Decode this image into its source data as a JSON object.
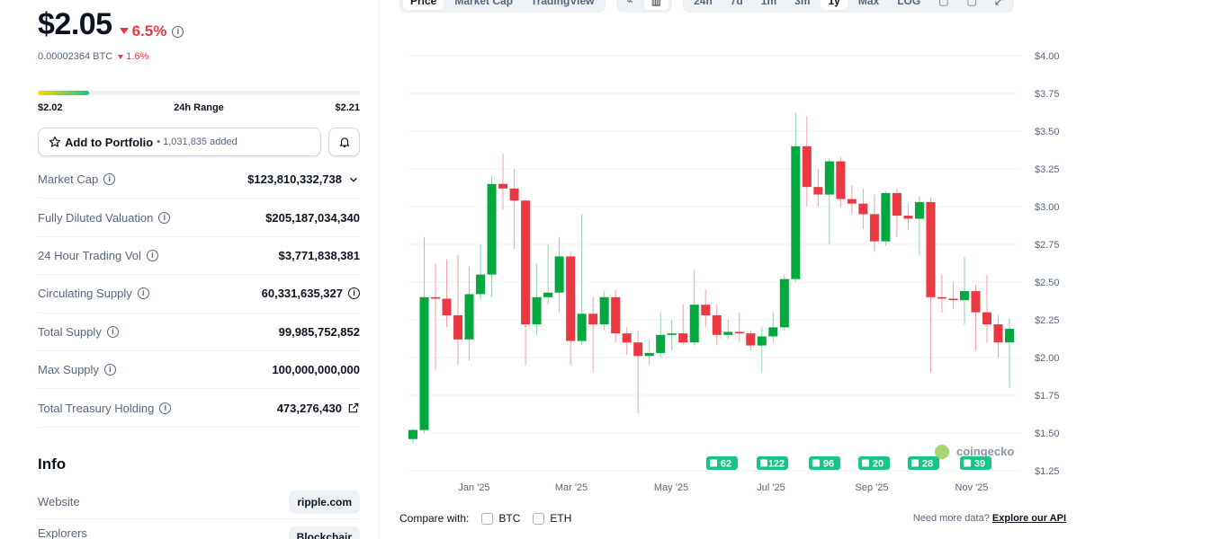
{
  "coin": {
    "price": "$2.05",
    "change_pct": "6.5%",
    "btc_price": "0.00002364 BTC",
    "btc_change": "1.6%",
    "range_low": "$2.02",
    "range_label": "24h Range",
    "range_high": "$2.21",
    "range_progress": 0.16
  },
  "portfolio": {
    "label": "Add to Portfolio",
    "added": "• 1,031,835 added"
  },
  "stats": [
    {
      "name": "Market Cap",
      "value": "$123,810,332,738"
    },
    {
      "name": "Fully Diluted Valuation",
      "value": "$205,187,034,340"
    },
    {
      "name": "24 Hour Trading Vol",
      "value": "$3,771,838,381"
    },
    {
      "name": "Circulating Supply",
      "value": "60,331,635,327"
    },
    {
      "name": "Total Supply",
      "value": "99,985,752,852"
    },
    {
      "name": "Max Supply",
      "value": "100,000,000,000"
    },
    {
      "name": "Total Treasury Holding",
      "value": "473,276,430"
    }
  ],
  "info": {
    "heading": "Info",
    "website_label": "Website",
    "website_value": "ripple.com",
    "explorers_label": "Explorers",
    "explorers_value": "Blockchair"
  },
  "toolbar": {
    "tabs": [
      "Price",
      "Market Cap",
      "TradingView"
    ],
    "ranges": [
      "24h",
      "7d",
      "1m",
      "3m",
      "1y",
      "Max",
      "LOG"
    ]
  },
  "compare": {
    "label": "Compare with:",
    "options": [
      "BTC",
      "ETH"
    ],
    "api_text": "Need more data?",
    "api_link": "Explore our API"
  },
  "chart_data": {
    "type": "candlestick",
    "y_ticks": [
      "$4.00",
      "$3.75",
      "$3.50",
      "$3.25",
      "$3.00",
      "$2.75",
      "$2.50",
      "$2.25",
      "$2.00",
      "$1.75",
      "$1.50",
      "$1.25"
    ],
    "ylim": [
      1.25,
      4.0
    ],
    "x_ticks": [
      "Jan '25",
      "Mar '25",
      "May '25",
      "Jul '25",
      "Sep '25",
      "Nov '25"
    ],
    "grid": true,
    "watermark": "coingecko",
    "news_badges": [
      "62",
      "122",
      "96",
      "20",
      "28",
      "39"
    ],
    "candles": [
      {
        "o": 1.46,
        "c": 1.52,
        "h": 1.53,
        "l": 1.43
      },
      {
        "o": 1.52,
        "c": 2.4,
        "h": 2.8,
        "l": 1.5
      },
      {
        "o": 2.4,
        "c": 2.39,
        "h": 2.62,
        "l": 1.92
      },
      {
        "o": 2.39,
        "c": 2.28,
        "h": 2.65,
        "l": 2.2
      },
      {
        "o": 2.28,
        "c": 2.12,
        "h": 2.68,
        "l": 1.95
      },
      {
        "o": 2.12,
        "c": 2.42,
        "h": 2.6,
        "l": 1.98
      },
      {
        "o": 2.42,
        "c": 2.55,
        "h": 2.75,
        "l": 2.38
      },
      {
        "o": 2.55,
        "c": 3.15,
        "h": 3.2,
        "l": 2.4
      },
      {
        "o": 3.15,
        "c": 3.12,
        "h": 3.35,
        "l": 2.98
      },
      {
        "o": 3.12,
        "c": 3.04,
        "h": 3.25,
        "l": 2.72
      },
      {
        "o": 3.04,
        "c": 2.22,
        "h": 3.05,
        "l": 1.95
      },
      {
        "o": 2.22,
        "c": 2.4,
        "h": 2.62,
        "l": 2.15
      },
      {
        "o": 2.4,
        "c": 2.43,
        "h": 2.75,
        "l": 2.35
      },
      {
        "o": 2.43,
        "c": 2.67,
        "h": 2.8,
        "l": 2.3
      },
      {
        "o": 2.67,
        "c": 2.11,
        "h": 2.7,
        "l": 1.95
      },
      {
        "o": 2.11,
        "c": 2.29,
        "h": 2.95,
        "l": 2.08
      },
      {
        "o": 2.29,
        "c": 2.22,
        "h": 2.4,
        "l": 1.9
      },
      {
        "o": 2.22,
        "c": 2.4,
        "h": 2.44,
        "l": 2.18
      },
      {
        "o": 2.4,
        "c": 2.16,
        "h": 2.45,
        "l": 2.1
      },
      {
        "o": 2.16,
        "c": 2.1,
        "h": 2.2,
        "l": 2.02
      },
      {
        "o": 2.1,
        "c": 2.01,
        "h": 2.18,
        "l": 1.63
      },
      {
        "o": 2.01,
        "c": 2.03,
        "h": 2.12,
        "l": 1.95
      },
      {
        "o": 2.03,
        "c": 2.15,
        "h": 2.3,
        "l": 2.0
      },
      {
        "o": 2.15,
        "c": 2.16,
        "h": 2.25,
        "l": 2.05
      },
      {
        "o": 2.16,
        "c": 2.1,
        "h": 2.35,
        "l": 2.08
      },
      {
        "o": 2.1,
        "c": 2.35,
        "h": 2.58,
        "l": 2.08
      },
      {
        "o": 2.35,
        "c": 2.28,
        "h": 2.45,
        "l": 2.2
      },
      {
        "o": 2.28,
        "c": 2.15,
        "h": 2.35,
        "l": 2.08
      },
      {
        "o": 2.15,
        "c": 2.17,
        "h": 2.25,
        "l": 2.12
      },
      {
        "o": 2.17,
        "c": 2.16,
        "h": 2.3,
        "l": 2.1
      },
      {
        "o": 2.16,
        "c": 2.08,
        "h": 2.18,
        "l": 2.05
      },
      {
        "o": 2.08,
        "c": 2.14,
        "h": 2.2,
        "l": 1.9
      },
      {
        "o": 2.14,
        "c": 2.2,
        "h": 2.3,
        "l": 2.1
      },
      {
        "o": 2.2,
        "c": 2.52,
        "h": 2.55,
        "l": 2.18
      },
      {
        "o": 2.52,
        "c": 3.4,
        "h": 3.62,
        "l": 2.5
      },
      {
        "o": 3.4,
        "c": 3.13,
        "h": 3.6,
        "l": 3.0
      },
      {
        "o": 3.13,
        "c": 3.08,
        "h": 3.25,
        "l": 3.0
      },
      {
        "o": 3.08,
        "c": 3.3,
        "h": 3.32,
        "l": 2.75
      },
      {
        "o": 3.3,
        "c": 3.05,
        "h": 3.33,
        "l": 3.0
      },
      {
        "o": 3.05,
        "c": 3.02,
        "h": 3.14,
        "l": 2.95
      },
      {
        "o": 3.02,
        "c": 2.95,
        "h": 3.12,
        "l": 2.85
      },
      {
        "o": 2.95,
        "c": 2.77,
        "h": 3.08,
        "l": 2.7
      },
      {
        "o": 2.77,
        "c": 3.09,
        "h": 3.1,
        "l": 2.74
      },
      {
        "o": 3.09,
        "c": 2.94,
        "h": 3.12,
        "l": 2.8
      },
      {
        "o": 2.94,
        "c": 2.92,
        "h": 3.02,
        "l": 2.85
      },
      {
        "o": 2.92,
        "c": 3.03,
        "h": 3.07,
        "l": 2.68
      },
      {
        "o": 3.03,
        "c": 2.4,
        "h": 3.06,
        "l": 1.9
      },
      {
        "o": 2.4,
        "c": 2.39,
        "h": 2.55,
        "l": 2.3
      },
      {
        "o": 2.39,
        "c": 2.38,
        "h": 2.5,
        "l": 2.32
      },
      {
        "o": 2.38,
        "c": 2.44,
        "h": 2.67,
        "l": 2.22
      },
      {
        "o": 2.44,
        "c": 2.3,
        "h": 2.48,
        "l": 2.05
      },
      {
        "o": 2.3,
        "c": 2.22,
        "h": 2.55,
        "l": 2.1
      },
      {
        "o": 2.22,
        "c": 2.1,
        "h": 2.28,
        "l": 2.0
      },
      {
        "o": 2.1,
        "c": 2.19,
        "h": 2.26,
        "l": 1.8
      }
    ]
  }
}
